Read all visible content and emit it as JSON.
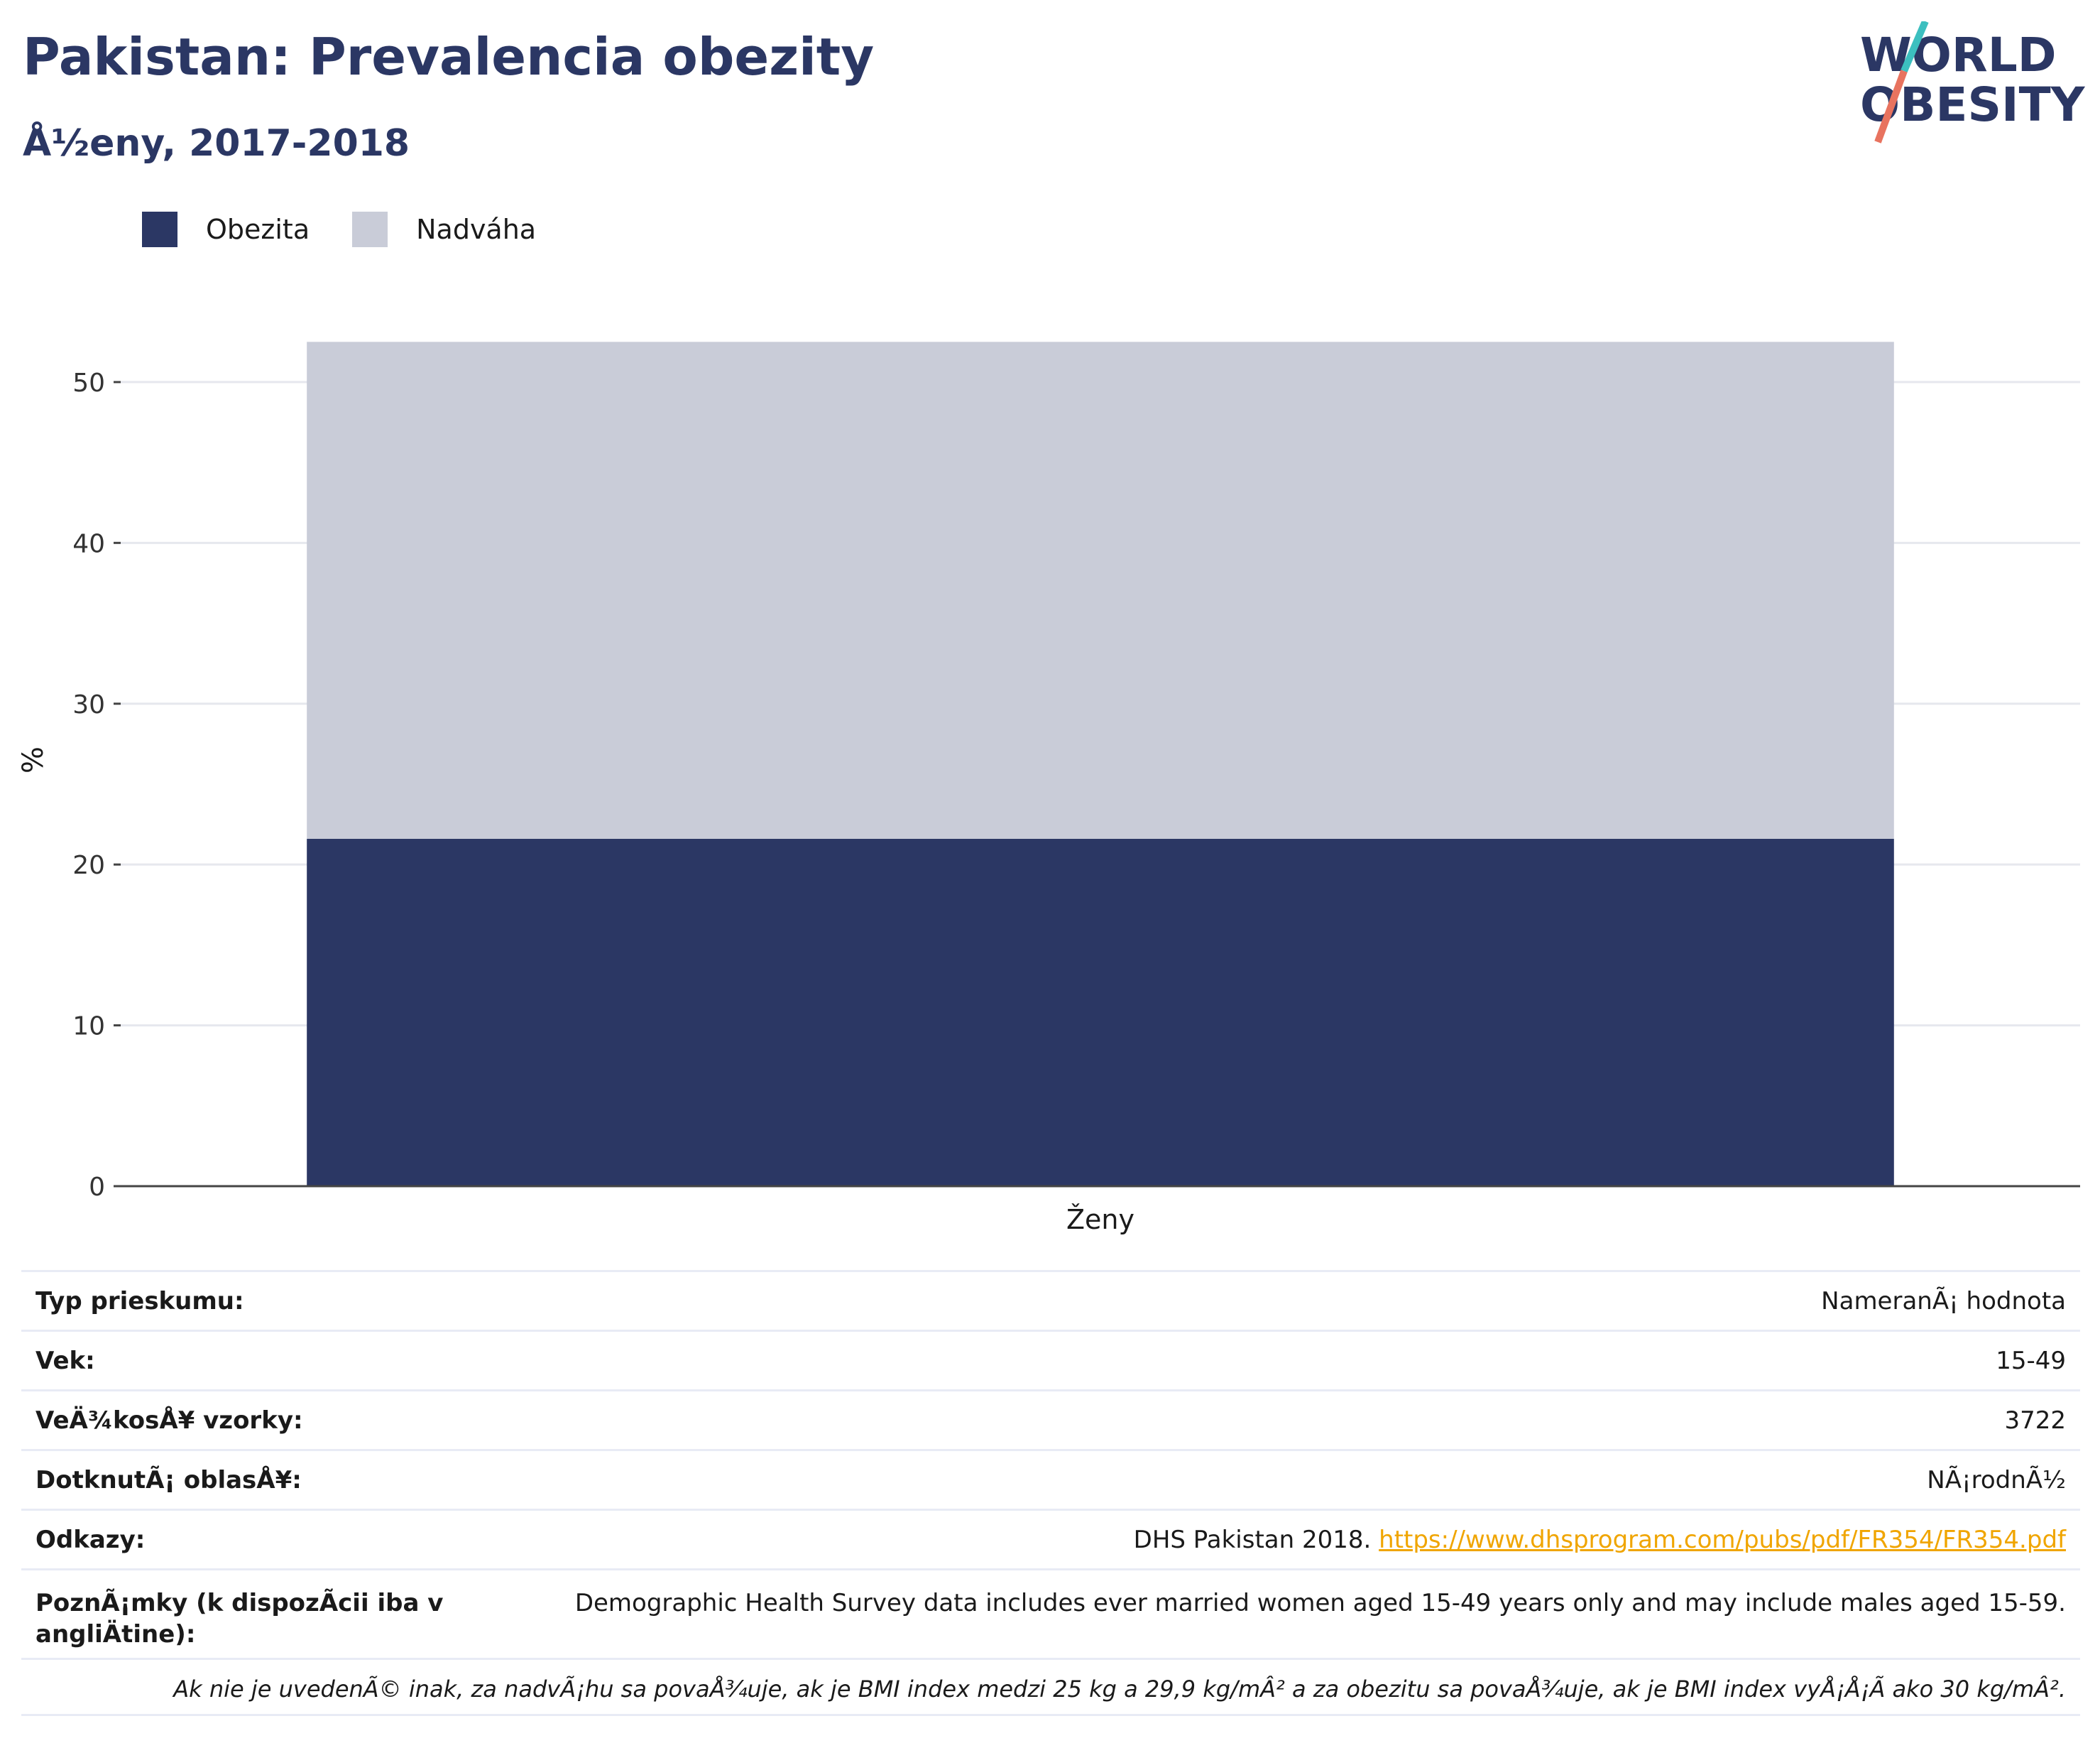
{
  "header": {
    "title": "Pakistan: Prevalencia obezity",
    "subtitle": "Å½eny, 2017-2018"
  },
  "logo": {
    "line1": "WORLD",
    "line2": "OBESITY",
    "icon": "world-obesity-logo"
  },
  "colors": {
    "obesity": "#2b3764",
    "overweight": "#c9ccd8",
    "accent_teal": "#3cbfbf",
    "accent_coral": "#e8735f",
    "link": "#f0a500"
  },
  "legend": [
    {
      "label": "Obezita",
      "color": "#2b3764"
    },
    {
      "label": "Nadváha",
      "color": "#c9ccd8"
    }
  ],
  "chart_data": {
    "type": "bar",
    "stacked": true,
    "categories": [
      "Ženy"
    ],
    "series": [
      {
        "name": "Obezita",
        "values": [
          21.6
        ]
      },
      {
        "name": "Nadváha",
        "values": [
          30.9
        ]
      }
    ],
    "ylabel": "%",
    "xlabel": "",
    "ylim": [
      0,
      53
    ],
    "yticks": [
      0,
      10,
      20,
      30,
      40,
      50
    ],
    "grid": true,
    "legend_position": "top-left"
  },
  "info": {
    "rows": [
      {
        "label": "Typ prieskumu:",
        "value": "NameranÃ¡ hodnota"
      },
      {
        "label": "Vek:",
        "value": "15-49"
      },
      {
        "label": "VeÄ¾kosÅ¥ vzorky:",
        "value": "3722"
      },
      {
        "label": "DotknutÃ¡ oblasÅ¥:",
        "value": "NÃ¡rodnÃ½"
      }
    ],
    "references_label": "Odkazy:",
    "references_text": "DHS Pakistan 2018. ",
    "references_link": "https://www.dhsprogram.com/pubs/pdf/FR354/FR354.pdf",
    "notes_label": "PoznÃ¡mky (k dispozÃ­cii iba v angliÄtine):",
    "notes_value": "Demographic Health Survey data includes ever married women aged 15-49 years only and may include males aged 15-59.",
    "footnote": "Ak nie je uvedenÃ© inak, za nadvÃ¡hu sa povaÅ¾uje, ak je BMI index medzi 25 kg a 29,9 kg/mÂ² a za obezitu sa povaÅ¾uje, ak je BMI index vyÅ¡Å¡Ã­ ako 30 kg/mÂ²."
  }
}
